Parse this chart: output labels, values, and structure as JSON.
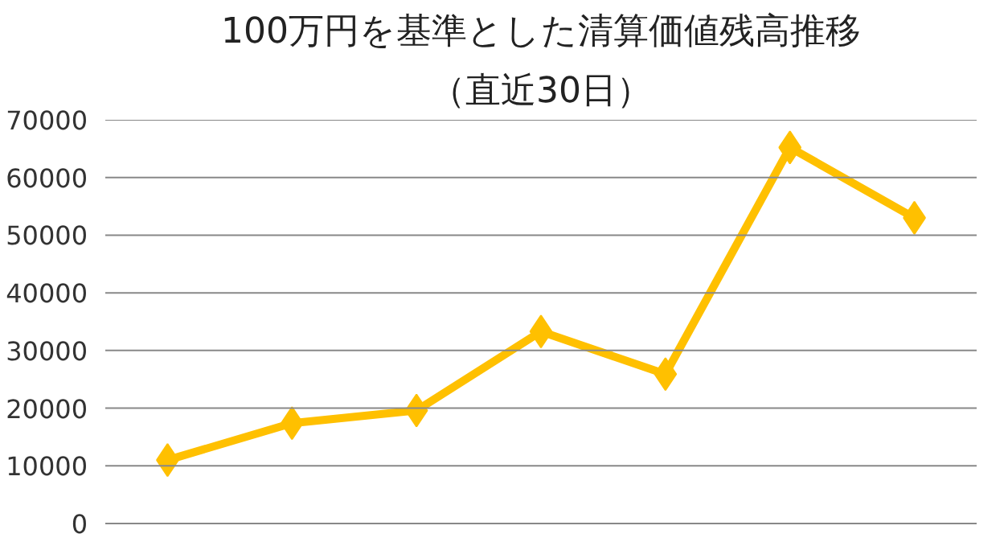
{
  "chart_data": {
    "type": "line",
    "title": "100万円を基準とした清算価値残高推移",
    "subtitle": "（直近30日）",
    "categories": [
      null,
      null,
      null,
      null,
      null,
      null,
      null
    ],
    "series": [
      {
        "color": "#ffc000",
        "values": [
          11000,
          17400,
          19600,
          33300,
          25900,
          65200,
          53000
        ]
      }
    ],
    "ylim": [
      0,
      70000
    ],
    "yticks": [
      0,
      10000,
      20000,
      30000,
      40000,
      50000,
      60000,
      70000
    ],
    "grid": "y",
    "marker": "diamond",
    "line_style": "solid"
  }
}
